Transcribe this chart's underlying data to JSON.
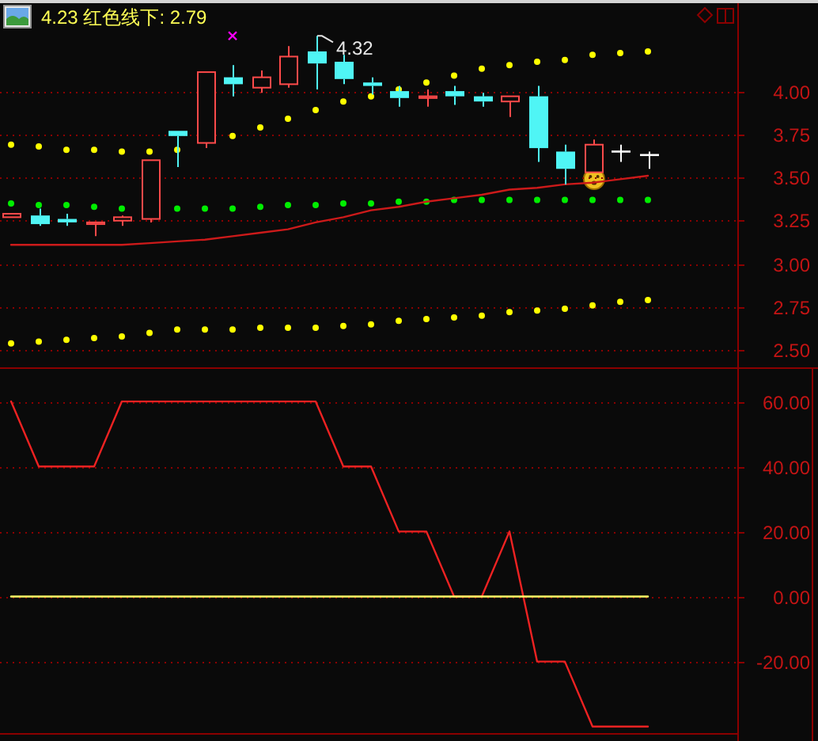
{
  "chart_data": [
    {
      "type": "candlestick",
      "title": "4.23 红色线下: 2.79",
      "categories": [
        null,
        null,
        null,
        null,
        null,
        null,
        null,
        null,
        null,
        null,
        null,
        null,
        null,
        null,
        null,
        null,
        null,
        null,
        null,
        null,
        null,
        null,
        null,
        null
      ],
      "ohlc": [
        [
          3.27,
          3.29,
          3.27,
          3.29
        ],
        [
          3.28,
          3.32,
          3.22,
          3.23
        ],
        [
          3.26,
          3.29,
          3.22,
          3.24
        ],
        [
          3.23,
          3.24,
          3.16,
          3.24
        ],
        [
          3.25,
          3.28,
          3.22,
          3.27
        ],
        [
          3.26,
          3.6,
          3.24,
          3.6
        ],
        [
          3.77,
          3.77,
          3.56,
          3.74
        ],
        [
          3.7,
          4.11,
          3.67,
          4.11
        ],
        [
          4.08,
          4.15,
          3.97,
          4.04
        ],
        [
          4.02,
          4.12,
          3.99,
          4.08
        ],
        [
          4.04,
          4.26,
          4.02,
          4.2
        ],
        [
          4.23,
          4.32,
          4.01,
          4.16
        ],
        [
          4.17,
          4.21,
          4.04,
          4.07
        ],
        [
          4.05,
          4.08,
          3.98,
          4.03
        ],
        [
          4.0,
          4.03,
          3.91,
          3.96
        ],
        [
          3.96,
          4.01,
          3.91,
          3.97
        ],
        [
          4.0,
          4.03,
          3.92,
          3.97
        ],
        [
          3.97,
          3.99,
          3.91,
          3.94
        ],
        [
          3.94,
          3.97,
          3.85,
          3.97
        ],
        [
          3.97,
          4.03,
          3.59,
          3.67
        ],
        [
          3.65,
          3.69,
          3.46,
          3.55
        ],
        [
          3.53,
          3.72,
          3.53,
          3.69
        ],
        [
          3.65,
          3.69,
          3.59,
          3.65
        ],
        [
          3.63,
          3.65,
          3.55,
          3.63
        ]
      ],
      "colors": [
        "#ff4a4a",
        "#4ff5f5",
        "#4ff5f5",
        "#ff4a4a",
        "#ff4a4a",
        "#ff4a4a",
        "#4ff5f5",
        "#ff4a4a",
        "#4ff5f5",
        "#ff4a4a",
        "#ff4a4a",
        "#4ff5f5",
        "#4ff5f5",
        "#4ff5f5",
        "#4ff5f5",
        "#ff4a4a",
        "#4ff5f5",
        "#4ff5f5",
        "#ff4a4a",
        "#4ff5f5",
        "#4ff5f5",
        "#ff4a4a",
        "#ffffff",
        "#ffffff"
      ],
      "series": [
        {
          "type": "scatter",
          "marker": "circle",
          "color": "#ffff00",
          "values": [
            3.69,
            3.68,
            3.66,
            3.66,
            3.65,
            3.65,
            3.66,
            null,
            3.74,
            3.79,
            3.84,
            3.89,
            3.94,
            3.97,
            4.01,
            4.05,
            4.09,
            4.13,
            4.15,
            4.17,
            4.18,
            4.21,
            4.22,
            4.23
          ]
        },
        {
          "type": "scatter",
          "marker": "circle",
          "color": "#00ee00",
          "values": [
            3.35,
            3.34,
            3.34,
            3.33,
            3.32,
            null,
            3.32,
            3.32,
            3.32,
            3.33,
            3.34,
            3.34,
            3.35,
            3.35,
            3.36,
            3.36,
            3.37,
            3.37,
            3.37,
            3.37,
            3.37,
            3.37,
            3.37,
            3.37
          ]
        },
        {
          "type": "scatter",
          "marker": "circle",
          "color": "#ffff00",
          "values": [
            2.54,
            2.55,
            2.56,
            2.57,
            2.58,
            2.6,
            2.62,
            2.62,
            2.62,
            2.63,
            2.63,
            2.63,
            2.64,
            2.65,
            2.67,
            2.68,
            2.69,
            2.7,
            2.72,
            2.73,
            2.74,
            2.76,
            2.78,
            2.79
          ]
        },
        {
          "type": "line",
          "color": "#cc1a1a",
          "values": [
            3.11,
            3.11,
            3.11,
            3.11,
            3.11,
            3.12,
            3.13,
            3.14,
            3.16,
            3.18,
            3.2,
            3.24,
            3.27,
            3.31,
            3.33,
            3.36,
            3.38,
            3.4,
            3.43,
            3.44,
            3.46,
            3.47,
            3.49,
            3.51
          ]
        },
        {
          "type": "scatter",
          "marker": "cross",
          "color": "#ff00ff",
          "values": [
            null,
            null,
            null,
            null,
            null,
            null,
            null,
            null,
            4.32,
            null,
            null,
            null,
            null,
            null,
            null,
            null,
            null,
            null,
            null,
            null,
            null,
            null,
            null,
            null
          ]
        }
      ],
      "annotations": [
        "4.32"
      ],
      "ylim": [
        2.41,
        4.5
      ],
      "yticks": [
        {
          "value": 2.5,
          "label": "2.50"
        },
        {
          "value": 2.75,
          "label": "2.75"
        },
        {
          "value": 3,
          "label": "3.00"
        },
        {
          "value": 3.25,
          "label": "3.25"
        },
        {
          "value": 3.5,
          "label": "3.50"
        },
        {
          "value": 3.75,
          "label": "3.75"
        },
        {
          "value": 4,
          "label": "4.00"
        }
      ],
      "grid": "y",
      "tick_labels": "y"
    },
    {
      "type": "line",
      "categories": [
        null,
        null,
        null,
        null,
        null,
        null,
        null,
        null,
        null,
        null,
        null,
        null,
        null,
        null,
        null,
        null,
        null,
        null,
        null,
        null,
        null,
        null,
        null,
        null
      ],
      "series": [
        {
          "color": "#ee2222",
          "values": [
            60,
            40,
            40,
            40,
            60,
            60,
            60,
            60,
            60,
            60,
            60,
            60,
            40,
            40,
            20,
            20,
            0,
            0,
            20,
            -20,
            -20,
            -40,
            -40,
            -40
          ]
        },
        {
          "color": "#ffff66",
          "values": [
            0,
            0,
            0,
            0,
            0,
            0,
            0,
            0,
            0,
            0,
            0,
            0,
            0,
            0,
            0,
            0,
            0,
            0,
            0,
            0,
            0,
            0,
            0,
            0
          ]
        }
      ],
      "ylim": [
        -42,
        70
      ],
      "yticks": [
        {
          "value": -20,
          "label": "-20.00"
        },
        {
          "value": 0,
          "label": "0.00"
        },
        {
          "value": 20,
          "label": "20.00"
        },
        {
          "value": 40,
          "label": "40.00"
        },
        {
          "value": 60,
          "label": "60.00"
        }
      ],
      "grid": "y",
      "tick_labels": "y"
    }
  ]
}
